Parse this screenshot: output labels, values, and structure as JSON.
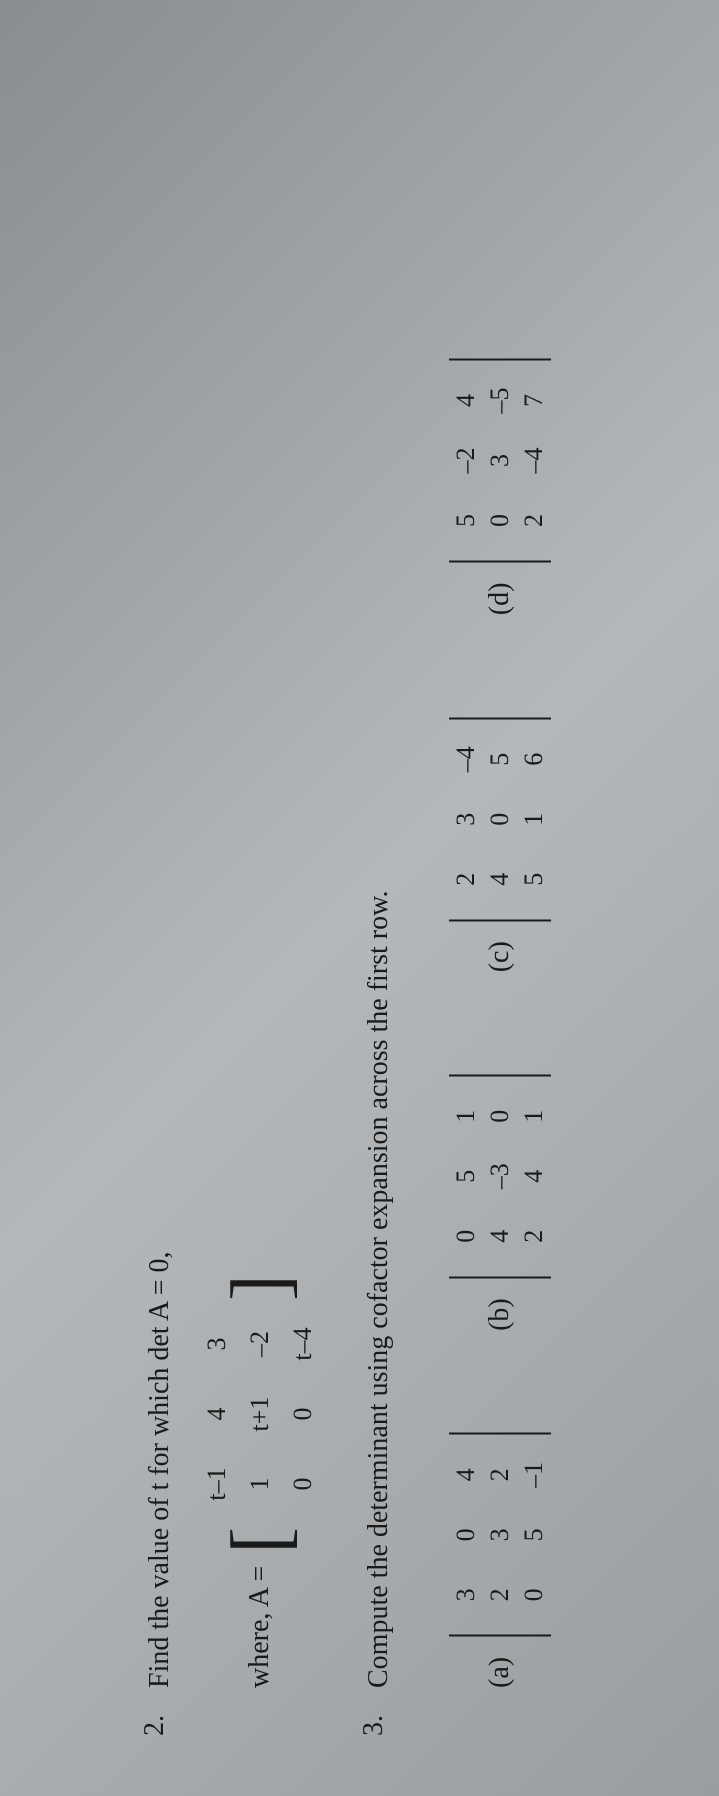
{
  "background_color_gradient": [
    "#8a8d90",
    "#b5b8ba",
    "#9a9d9f"
  ],
  "text_color": "#1a1a1a",
  "font_family": "Times New Roman",
  "base_fontsize": 28,
  "matrix_cell_fontsize": 26,
  "problems": [
    {
      "number": "2.",
      "text": "Find the value of t for which det A = 0,",
      "where_label": "where, A =",
      "matrix": {
        "type": "matrix",
        "bracket_style": "square",
        "rows": [
          [
            "t–1",
            "4",
            "3"
          ],
          [
            "1",
            "t+1",
            "–2"
          ],
          [
            "0",
            "0",
            "t–4"
          ]
        ]
      }
    },
    {
      "number": "3.",
      "text": "Compute the determinant using cofactor expansion across the first row.",
      "options": [
        {
          "label": "(a)",
          "determinant": {
            "type": "determinant",
            "rows": [
              [
                "3",
                "0",
                "4"
              ],
              [
                "2",
                "3",
                "2"
              ],
              [
                "0",
                "5",
                "–1"
              ]
            ]
          }
        },
        {
          "label": "(b)",
          "determinant": {
            "type": "determinant",
            "rows": [
              [
                "0",
                "5",
                "1"
              ],
              [
                "4",
                "–3",
                "0"
              ],
              [
                "2",
                "4",
                "1"
              ]
            ]
          }
        },
        {
          "label": "(c)",
          "determinant": {
            "type": "determinant",
            "rows": [
              [
                "2",
                "3",
                "–4"
              ],
              [
                "4",
                "0",
                "5"
              ],
              [
                "5",
                "1",
                "6"
              ]
            ]
          }
        },
        {
          "label": "(d)",
          "determinant": {
            "type": "determinant",
            "rows": [
              [
                "5",
                "–2",
                "4"
              ],
              [
                "0",
                "3",
                "–5"
              ],
              [
                "2",
                "–4",
                "7"
              ]
            ]
          }
        }
      ]
    }
  ]
}
